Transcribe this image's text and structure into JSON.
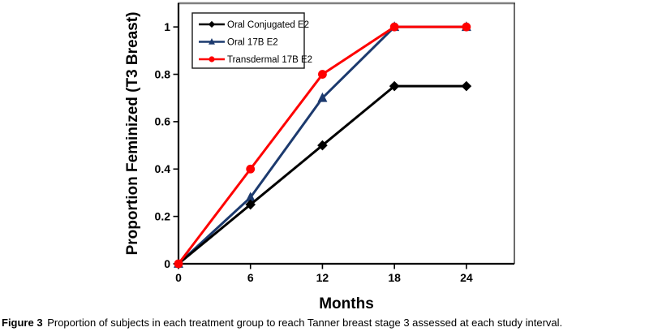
{
  "caption": {
    "label": "Figure 3",
    "text": "Proportion of subjects in each treatment group to reach Tanner breast stage 3 assessed at each study interval."
  },
  "chart_data": {
    "type": "line",
    "title": "",
    "xlabel": "Months",
    "ylabel": "Proportion Feminized (T3 Breast)",
    "x": [
      0,
      6,
      12,
      18,
      24
    ],
    "x_ticks": [
      0,
      6,
      12,
      18,
      24
    ],
    "y_ticks": [
      0,
      0.2,
      0.4,
      0.6,
      0.8,
      1
    ],
    "xlim": [
      0,
      28
    ],
    "ylim": [
      0,
      1.1
    ],
    "grid": false,
    "legend_position": "top-left-inside",
    "series": [
      {
        "name": "Oral Conjugated E2",
        "color": "#000000",
        "marker": "diamond",
        "values": [
          0,
          0.25,
          0.5,
          0.75,
          0.75
        ]
      },
      {
        "name": "Oral 17B E2",
        "color": "#1c3a6e",
        "marker": "triangle",
        "values": [
          0,
          0.28,
          0.7,
          1.0,
          1.0
        ]
      },
      {
        "name": "Transdermal 17B E2",
        "color": "#fe0000",
        "marker": "circle",
        "values": [
          0,
          0.4,
          0.8,
          1.0,
          1.0
        ]
      }
    ],
    "draw_order": [
      1,
      0,
      2
    ],
    "colors": {
      "axis": "#000000",
      "box_top": "#7f7f7f",
      "box_right": "#2e2e2e",
      "legend_border": "#1a1a1a",
      "background": "#ffffff"
    }
  }
}
